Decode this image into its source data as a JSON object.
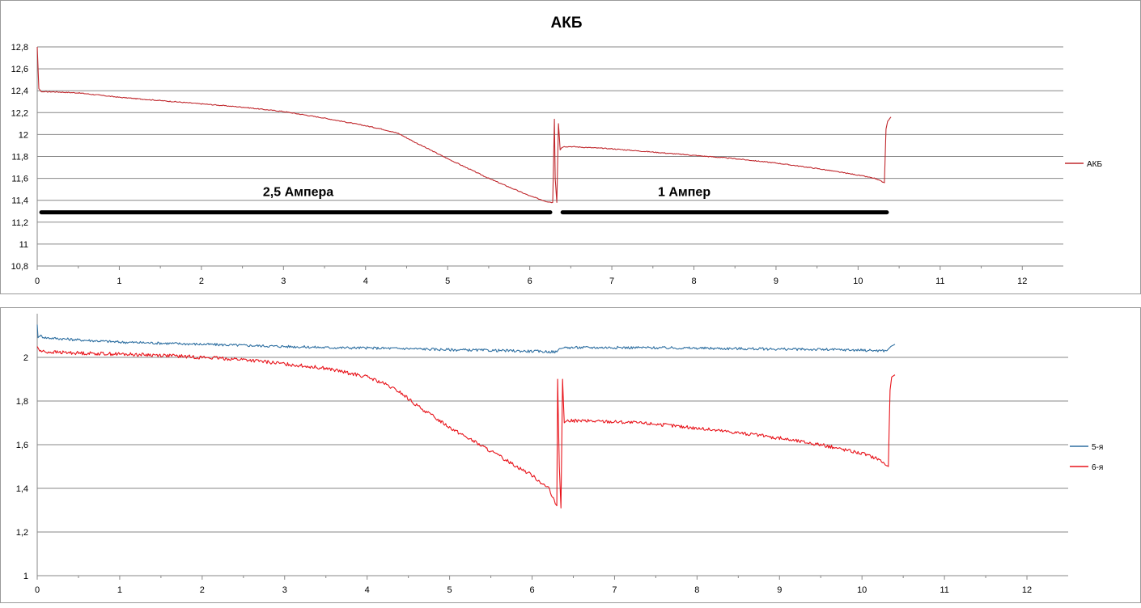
{
  "chart_data": [
    {
      "type": "line",
      "title": "АКБ",
      "xlabel": "",
      "ylabel": "",
      "xlim": [
        0,
        12.5
      ],
      "ylim": [
        10.8,
        12.8
      ],
      "x_ticks": [
        "0",
        "1",
        "2",
        "3",
        "4",
        "5",
        "6",
        "7",
        "8",
        "9",
        "10",
        "11",
        "12"
      ],
      "y_ticks": [
        "10,8",
        "11",
        "11,2",
        "11,4",
        "11,6",
        "11,8",
        "12",
        "12,2",
        "12,4",
        "12,6",
        "12,8"
      ],
      "grid": true,
      "legend_position": "right",
      "series": [
        {
          "name": "АКБ",
          "color": "#c0282d",
          "x": [
            0.0,
            0.02,
            0.05,
            0.1,
            0.2,
            0.5,
            1.0,
            1.5,
            2.0,
            2.5,
            3.0,
            3.5,
            4.0,
            4.2,
            4.4,
            4.6,
            5.0,
            5.5,
            6.0,
            6.2,
            6.28,
            6.3,
            6.31,
            6.33,
            6.35,
            6.37,
            6.39,
            6.42,
            6.5,
            7.0,
            7.5,
            8.0,
            8.5,
            9.0,
            9.5,
            10.0,
            10.2,
            10.32,
            10.34,
            10.36,
            10.4
          ],
          "y": [
            12.8,
            12.42,
            12.39,
            12.39,
            12.39,
            12.38,
            12.34,
            12.31,
            12.28,
            12.25,
            12.21,
            12.15,
            12.08,
            12.05,
            12.01,
            11.93,
            11.78,
            11.6,
            11.44,
            11.39,
            11.38,
            12.14,
            11.6,
            11.38,
            12.1,
            11.86,
            11.88,
            11.89,
            11.89,
            11.87,
            11.84,
            11.81,
            11.78,
            11.74,
            11.69,
            11.63,
            11.6,
            11.56,
            12.05,
            12.12,
            12.16
          ]
        }
      ],
      "annotations": [
        {
          "text": "2,5 Ампера",
          "x_from": 0.05,
          "x_to": 6.25,
          "y": 11.29
        },
        {
          "text": "1 Ампер",
          "x_from": 6.4,
          "x_to": 10.35,
          "y": 11.29
        }
      ]
    },
    {
      "type": "line",
      "title": "",
      "xlabel": "",
      "ylabel": "",
      "xlim": [
        0,
        12.5
      ],
      "ylim": [
        1,
        2.2
      ],
      "x_ticks": [
        "0",
        "1",
        "2",
        "3",
        "4",
        "5",
        "6",
        "7",
        "8",
        "9",
        "10",
        "11",
        "12"
      ],
      "y_ticks": [
        "1",
        "1,2",
        "1,4",
        "1,6",
        "1,8",
        "2"
      ],
      "grid": true,
      "legend_position": "right",
      "series": [
        {
          "name": "5-я",
          "color": "#2e6fa1",
          "x": [
            0.0,
            0.01,
            0.03,
            0.1,
            0.5,
            1.0,
            1.5,
            2.0,
            2.5,
            3.0,
            3.5,
            4.0,
            4.5,
            5.0,
            5.5,
            6.0,
            6.3,
            6.33,
            6.35,
            6.4,
            7.0,
            7.5,
            8.0,
            8.5,
            9.0,
            9.5,
            10.0,
            10.3,
            10.35,
            10.4
          ],
          "y": [
            2.15,
            2.09,
            2.1,
            2.09,
            2.08,
            2.07,
            2.065,
            2.06,
            2.055,
            2.05,
            2.045,
            2.043,
            2.04,
            2.035,
            2.032,
            2.028,
            2.025,
            2.04,
            2.04,
            2.045,
            2.045,
            2.044,
            2.042,
            2.04,
            2.038,
            2.036,
            2.033,
            2.03,
            2.05,
            2.06
          ]
        },
        {
          "name": "6-я",
          "color": "#e8141b",
          "x": [
            0.0,
            0.03,
            0.1,
            0.5,
            1.0,
            1.5,
            2.0,
            2.5,
            3.0,
            3.5,
            4.0,
            4.2,
            4.4,
            4.6,
            4.8,
            5.0,
            5.5,
            6.0,
            6.2,
            6.28,
            6.3,
            6.31,
            6.33,
            6.35,
            6.37,
            6.39,
            6.42,
            6.5,
            7.0,
            7.5,
            8.0,
            8.5,
            9.0,
            9.5,
            10.0,
            10.2,
            10.32,
            10.34,
            10.36,
            10.4
          ],
          "y": [
            2.05,
            2.03,
            2.025,
            2.02,
            2.015,
            2.01,
            2.0,
            1.99,
            1.97,
            1.95,
            1.91,
            1.88,
            1.84,
            1.78,
            1.73,
            1.68,
            1.57,
            1.46,
            1.4,
            1.33,
            1.32,
            1.9,
            1.5,
            1.31,
            1.9,
            1.7,
            1.71,
            1.71,
            1.705,
            1.695,
            1.675,
            1.655,
            1.63,
            1.6,
            1.56,
            1.535,
            1.5,
            1.85,
            1.91,
            1.92
          ]
        }
      ]
    }
  ]
}
